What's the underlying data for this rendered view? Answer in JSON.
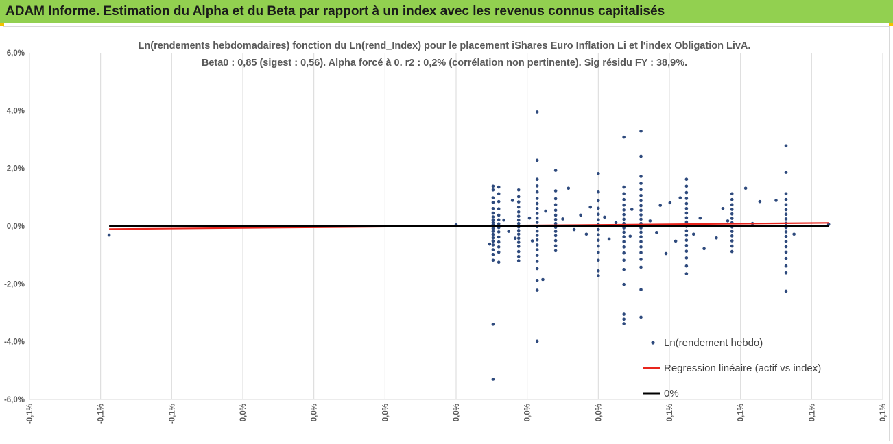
{
  "banner": {
    "title": "ADAM Informe. Estimation du Alpha et du Beta par rapport à un index avec les revenus connus capitalisés"
  },
  "colors": {
    "banner_bg": "#92d050",
    "points": "#2e4a7d",
    "regression": "#e8251d",
    "zero_line": "#000000",
    "grid": "#d9d9d9"
  },
  "chart_data": {
    "type": "scatter",
    "title_lines": [
      "Ln(rendements hebdomadaires) fonction du Ln(rend_Index) pour le placement iShares Euro Inflation Li et l'index Obligation LivA.",
      "Beta0 : 0,85 (sigest : 0,56). Alpha forcé à 0. r2 : 0,2% (corrélation non pertinente). Sig résidu FY : 38,9%."
    ],
    "y_axis": {
      "range": [
        -0.06,
        0.06
      ],
      "tick_values": [
        -0.06,
        -0.04,
        -0.02,
        0.0,
        0.02,
        0.04,
        0.06
      ],
      "tick_labels": [
        "-6,0%",
        "-4,0%",
        "-2,0%",
        "0,0%",
        "2,0%",
        "4,0%",
        "6,0%"
      ]
    },
    "x_axis": {
      "range": [
        -0.0015,
        0.0015
      ],
      "tick_values": [
        -0.0015,
        -0.00125,
        -0.001,
        -0.00075,
        -0.0005,
        -0.00025,
        0.0,
        0.00025,
        0.0005,
        0.00075,
        0.001,
        0.00125,
        0.0015
      ],
      "tick_labels": [
        "-0,1%",
        "-0,1%",
        "-0,1%",
        "0,0%",
        "0,0%",
        "0,0%",
        "0,0%",
        "0,0%",
        "0,0%",
        "0,1%",
        "0,1%",
        "0,1%",
        "0,1%"
      ]
    },
    "grid": "vertical",
    "legend": {
      "placement": "bottom-right",
      "entries": [
        {
          "label": "Ln(rendement hebdo)",
          "marker": "dot"
        },
        {
          "label": "Regression linéaire (actif vs index)",
          "marker": "red-line"
        },
        {
          "label": "0%",
          "marker": "black-line"
        }
      ]
    },
    "regression": {
      "slope": 0.85,
      "intercept": 0.0,
      "x_range": [
        -0.00122,
        0.00131
      ]
    },
    "zero_line": {
      "y": 0.0,
      "x_range": [
        -0.00122,
        0.00131
      ]
    },
    "columns": [
      {
        "x": 0.00013,
        "y": [
          0.0138,
          0.0125,
          0.0098,
          0.0082,
          0.0061,
          0.0045,
          0.0032,
          0.0021,
          0.0012,
          0.0005,
          -0.0008,
          -0.0018,
          -0.0029,
          -0.0041,
          -0.0052,
          -0.0065,
          -0.0082,
          -0.0098,
          -0.0118,
          -0.034,
          -0.053
        ]
      },
      {
        "x": 0.00015,
        "y": [
          0.0135,
          0.0112,
          0.0085,
          0.006,
          0.0038,
          0.0022,
          0.0008,
          -0.0005,
          -0.002,
          -0.0038,
          -0.0055,
          -0.0072,
          -0.009,
          -0.0125
        ]
      },
      {
        "x": 0.00022,
        "y": [
          0.0125,
          0.0102,
          0.0084,
          0.0066,
          0.0049,
          0.0034,
          0.0021,
          0.0009,
          -0.0003,
          -0.0015,
          -0.0028,
          -0.0042,
          -0.0056,
          -0.007,
          -0.0088,
          -0.0105,
          -0.012
        ]
      },
      {
        "x": 0.000285,
        "y": [
          0.0395,
          0.0228,
          0.0162,
          0.0139,
          0.0118,
          0.0096,
          0.0078,
          0.0061,
          0.0044,
          0.0028,
          0.0013,
          -0.0002,
          -0.0017,
          -0.0032,
          -0.0048,
          -0.0065,
          -0.0082,
          -0.0101,
          -0.0122,
          -0.0147,
          -0.0188,
          -0.0222,
          -0.0398
        ]
      },
      {
        "x": 0.00035,
        "y": [
          0.0193,
          0.0122,
          0.0095,
          0.0074,
          0.0055,
          0.0038,
          0.0023,
          0.0009,
          -0.0004,
          -0.0018,
          -0.0033,
          -0.005,
          -0.0068,
          -0.0085
        ]
      },
      {
        "x": 0.0005,
        "y": [
          0.0182,
          0.0118,
          0.0088,
          0.0062,
          0.0041,
          0.0022,
          0.0005,
          -0.0012,
          -0.003,
          -0.0049,
          -0.0069,
          -0.0091,
          -0.0118,
          -0.0155,
          -0.0172
        ]
      },
      {
        "x": 0.00059,
        "y": [
          0.0308,
          0.0135,
          0.0112,
          0.0092,
          0.0073,
          0.0056,
          0.004,
          0.0024,
          0.0009,
          -0.0006,
          -0.0021,
          -0.0037,
          -0.0054,
          -0.0072,
          -0.0093,
          -0.0118,
          -0.015,
          -0.0202,
          -0.0305,
          -0.0322,
          -0.0338
        ]
      },
      {
        "x": 0.00065,
        "y": [
          0.0329,
          0.0242,
          0.0172,
          0.0148,
          0.0126,
          0.0106,
          0.0088,
          0.0071,
          0.0055,
          0.0039,
          0.0024,
          0.0009,
          -0.0006,
          -0.0021,
          -0.0037,
          -0.0054,
          -0.0072,
          -0.0092,
          -0.0115,
          -0.0142,
          -0.022,
          -0.0315
        ]
      },
      {
        "x": 0.00081,
        "y": [
          0.0162,
          0.0138,
          0.0116,
          0.0096,
          0.0078,
          0.0061,
          0.0045,
          0.0029,
          0.0014,
          -0.0001,
          -0.0016,
          -0.0032,
          -0.0049,
          -0.0067,
          -0.0087,
          -0.011,
          -0.0138,
          -0.0165
        ]
      },
      {
        "x": 0.00097,
        "y": [
          0.0112,
          0.0092,
          0.0074,
          0.0058,
          0.0042,
          0.0027,
          0.0012,
          -0.0003,
          -0.0018,
          -0.0034,
          -0.0051,
          -0.0069,
          -0.0088
        ]
      },
      {
        "x": 0.00116,
        "y": [
          0.0278,
          0.0186,
          0.0112,
          0.0092,
          0.0074,
          0.0057,
          0.0041,
          0.0025,
          0.001,
          -0.0005,
          -0.002,
          -0.0036,
          -0.0053,
          -0.0071,
          -0.009,
          -0.0112,
          -0.0138,
          -0.0162,
          -0.0225
        ]
      }
    ],
    "points": [
      {
        "x": -0.00122,
        "y": -0.0031
      },
      {
        "x": 0.0,
        "y": 0.0004
      },
      {
        "x": 0.000118,
        "y": -0.0062
      },
      {
        "x": 0.000168,
        "y": 0.0021
      },
      {
        "x": 0.000185,
        "y": -0.0018
      },
      {
        "x": 0.000198,
        "y": 0.0089
      },
      {
        "x": 0.000208,
        "y": -0.0042
      },
      {
        "x": 0.000258,
        "y": 0.0028
      },
      {
        "x": 0.000268,
        "y": -0.0051
      },
      {
        "x": 0.000305,
        "y": -0.0185
      },
      {
        "x": 0.000315,
        "y": 0.0052
      },
      {
        "x": 0.000375,
        "y": 0.0025
      },
      {
        "x": 0.000395,
        "y": 0.0131
      },
      {
        "x": 0.000415,
        "y": -0.0012
      },
      {
        "x": 0.000438,
        "y": 0.0038
      },
      {
        "x": 0.000458,
        "y": -0.0028
      },
      {
        "x": 0.000472,
        "y": 0.0066
      },
      {
        "x": 0.000522,
        "y": 0.0031
      },
      {
        "x": 0.000538,
        "y": -0.0045
      },
      {
        "x": 0.000562,
        "y": 0.0012
      },
      {
        "x": 0.000612,
        "y": -0.0035
      },
      {
        "x": 0.000618,
        "y": 0.0058
      },
      {
        "x": 0.000682,
        "y": 0.0018
      },
      {
        "x": 0.000705,
        "y": -0.0022
      },
      {
        "x": 0.000718,
        "y": 0.0072
      },
      {
        "x": 0.000738,
        "y": -0.0095
      },
      {
        "x": 0.000752,
        "y": 0.0081
      },
      {
        "x": 0.000772,
        "y": -0.0052
      },
      {
        "x": 0.000788,
        "y": 0.0098
      },
      {
        "x": 0.000835,
        "y": -0.0028
      },
      {
        "x": 0.000858,
        "y": 0.0028
      },
      {
        "x": 0.000872,
        "y": -0.0078
      },
      {
        "x": 0.000915,
        "y": -0.0041
      },
      {
        "x": 0.000938,
        "y": 0.0061
      },
      {
        "x": 0.000955,
        "y": 0.0018
      },
      {
        "x": 0.001018,
        "y": 0.0131
      },
      {
        "x": 0.001042,
        "y": 0.0009
      },
      {
        "x": 0.001068,
        "y": 0.0085
      },
      {
        "x": 0.001125,
        "y": 0.0089
      },
      {
        "x": 0.001188,
        "y": -0.0028
      },
      {
        "x": 0.00131,
        "y": 0.0006
      }
    ]
  }
}
